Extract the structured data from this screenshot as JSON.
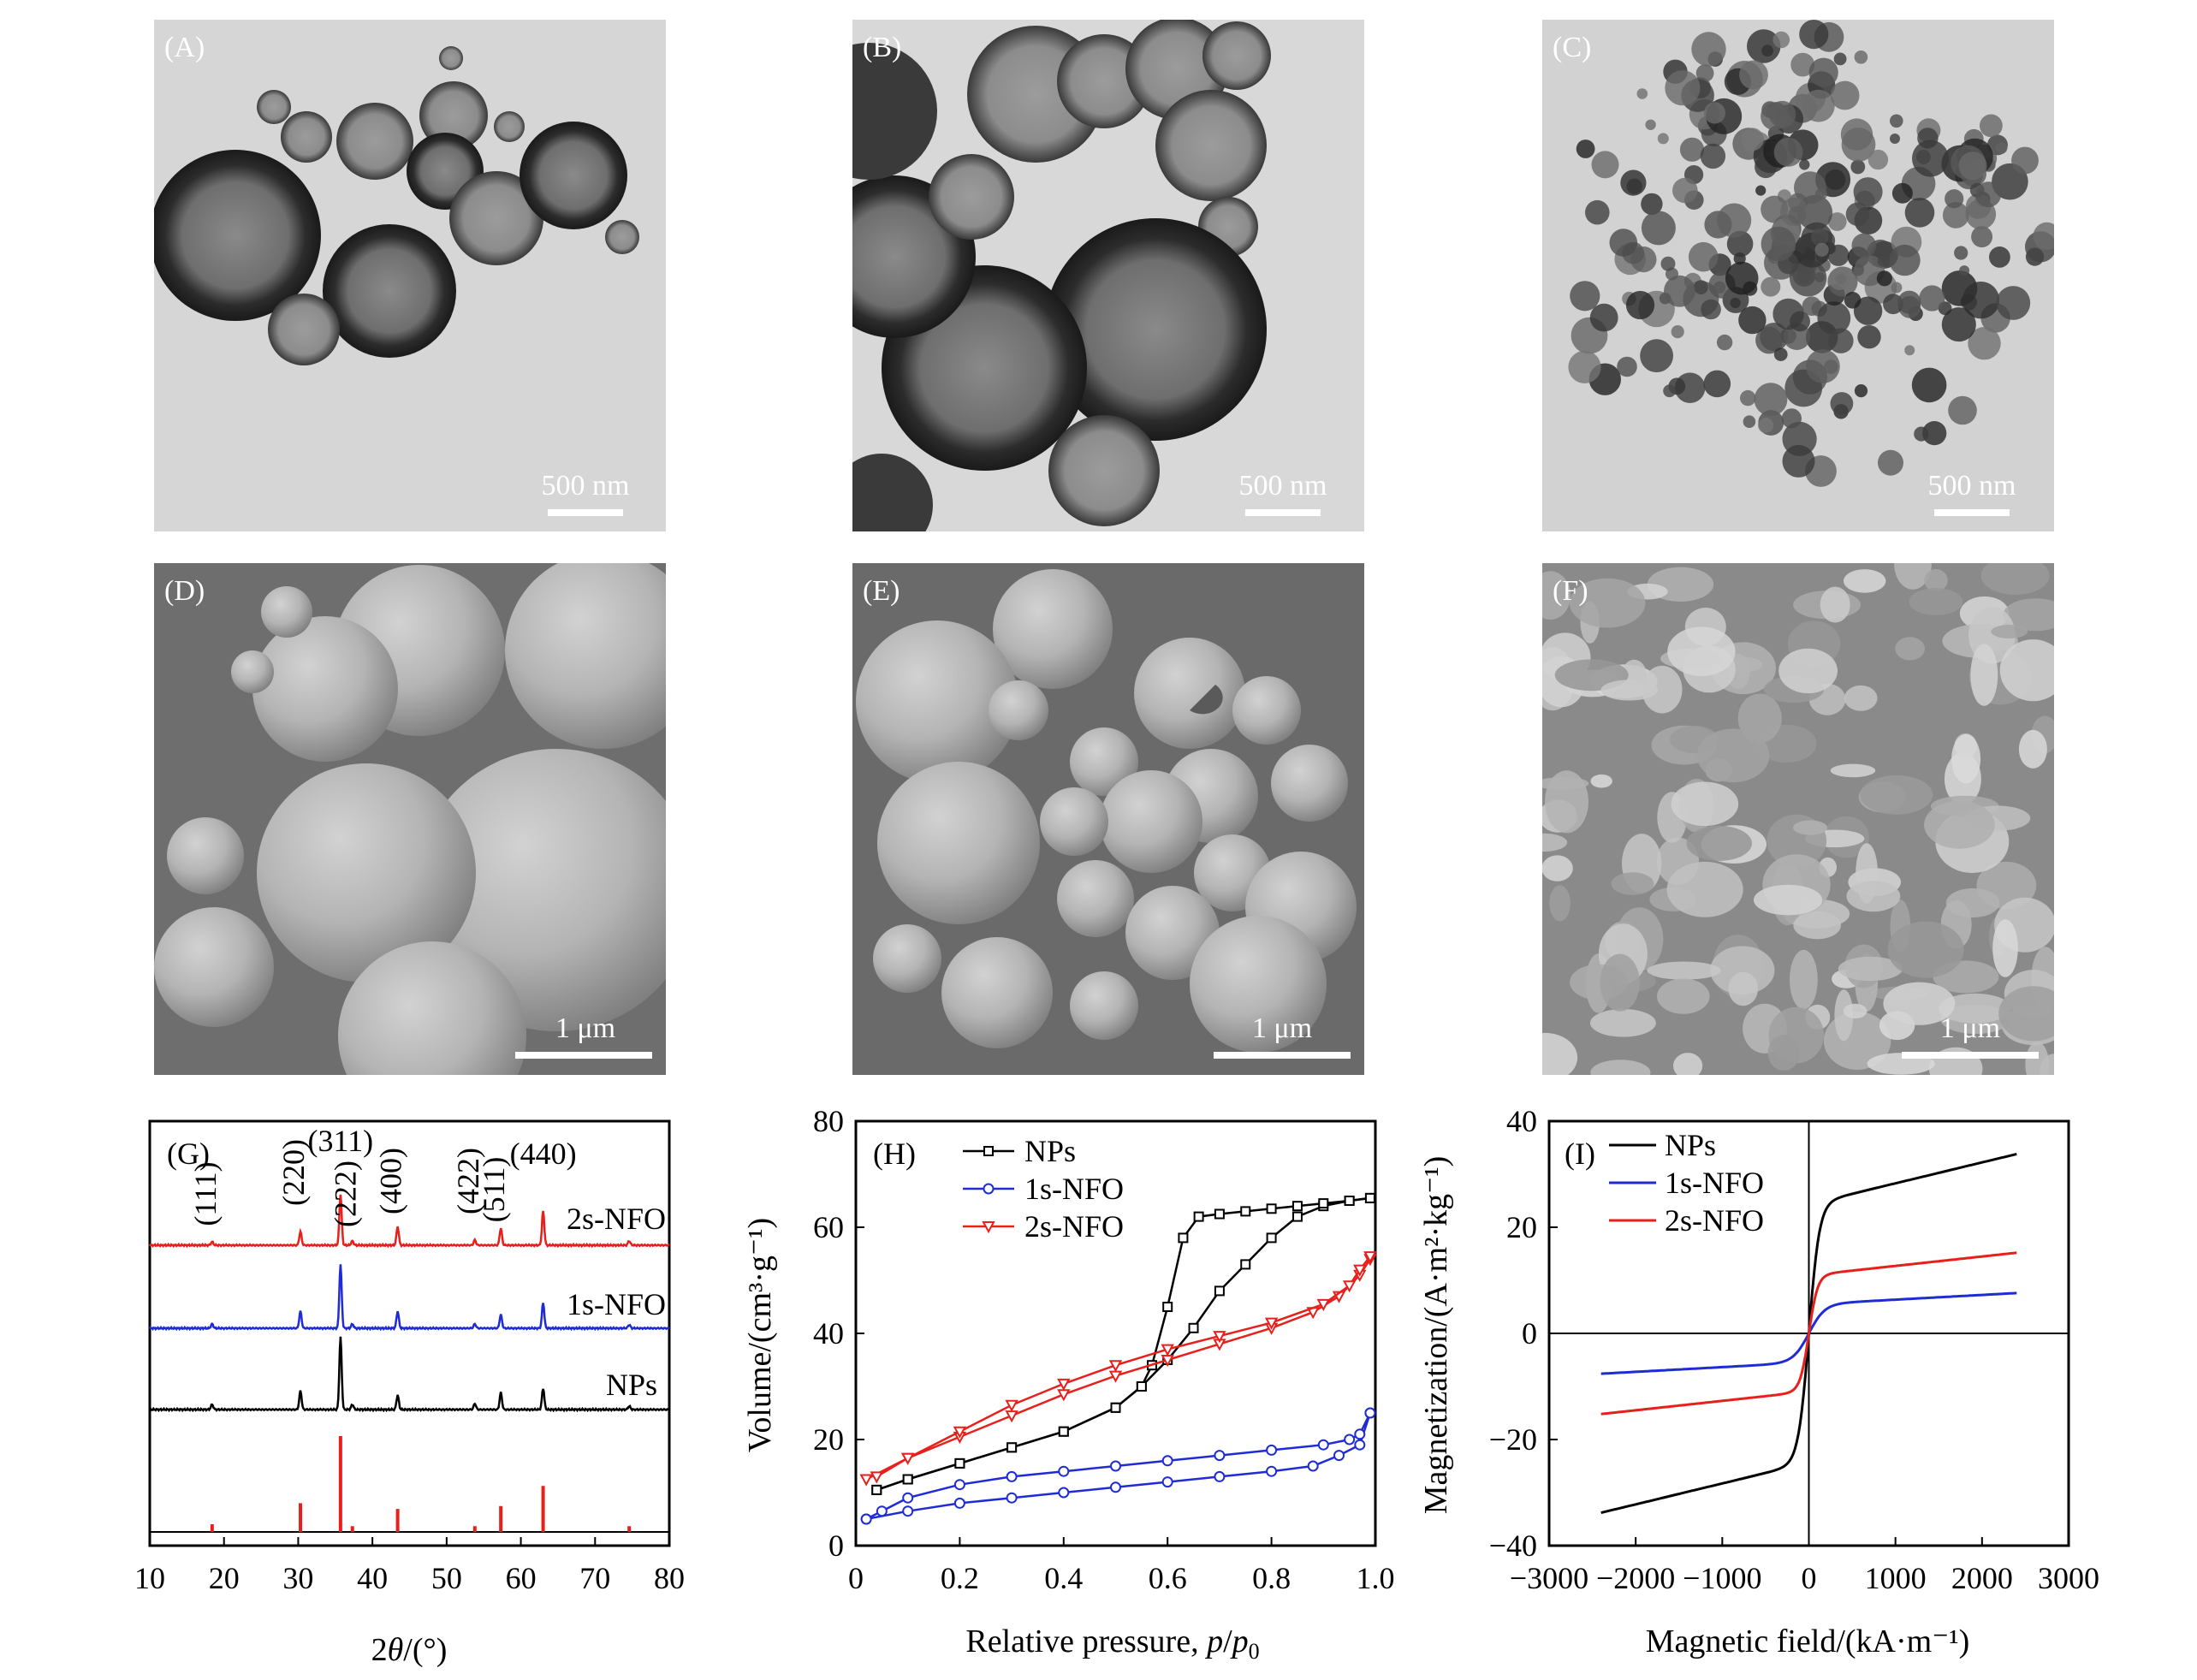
{
  "panels": {
    "A": {
      "label": "(A)",
      "scale": "500 nm"
    },
    "B": {
      "label": "(B)",
      "scale": "500 nm"
    },
    "C": {
      "label": "(C)",
      "scale": "500 nm"
    },
    "D": {
      "label": "(D)",
      "scale": "1 μm"
    },
    "E": {
      "label": "(E)",
      "scale": "1 μm"
    },
    "F": {
      "label": "(F)",
      "scale": "1 μm"
    }
  },
  "chart_data": [
    {
      "panel": "(G)",
      "type": "line",
      "xlabel_pre": "2",
      "xlabel_theta": "θ",
      "xlabel_post": "/(°)",
      "xlim": [
        10,
        80
      ],
      "xticks": [
        10,
        20,
        30,
        40,
        50,
        60,
        70,
        80
      ],
      "peak_labels": [
        "(111)",
        "(220)",
        "(311)",
        "(222)",
        "(400)",
        "(422)",
        "(511)",
        "(440)"
      ],
      "peak_positions": [
        18.4,
        30.3,
        35.7,
        37.3,
        43.4,
        53.8,
        57.3,
        63.0
      ],
      "series": [
        {
          "name": "2s-NFO",
          "color": "#e8201c",
          "peaks": [
            [
              18.4,
              4
            ],
            [
              30.3,
              16
            ],
            [
              35.7,
              60
            ],
            [
              37.3,
              5
            ],
            [
              43.4,
              22
            ],
            [
              53.8,
              6
            ],
            [
              57.3,
              20
            ],
            [
              63.0,
              40
            ],
            [
              74.6,
              5
            ]
          ]
        },
        {
          "name": "1s-NFO",
          "color": "#1f2cd6",
          "peaks": [
            [
              18.4,
              5
            ],
            [
              30.3,
              20
            ],
            [
              35.7,
              75
            ],
            [
              37.3,
              5
            ],
            [
              43.4,
              20
            ],
            [
              53.8,
              5
            ],
            [
              57.3,
              16
            ],
            [
              63.0,
              30
            ],
            [
              74.6,
              4
            ]
          ]
        },
        {
          "name": "NPs",
          "color": "#000000",
          "peaks": [
            [
              18.4,
              6
            ],
            [
              30.3,
              22
            ],
            [
              35.7,
              85
            ],
            [
              37.3,
              6
            ],
            [
              43.4,
              17
            ],
            [
              53.8,
              7
            ],
            [
              57.3,
              20
            ],
            [
              63.0,
              25
            ],
            [
              74.6,
              4
            ]
          ]
        }
      ],
      "reference_color": "#e8201c",
      "reference_lines": [
        [
          18.4,
          8
        ],
        [
          30.3,
          30
        ],
        [
          35.7,
          100
        ],
        [
          37.3,
          6
        ],
        [
          43.4,
          24
        ],
        [
          53.8,
          6
        ],
        [
          57.3,
          27
        ],
        [
          63.0,
          48
        ],
        [
          74.6,
          6
        ]
      ]
    },
    {
      "panel": "(H)",
      "type": "line",
      "xlabel_pre": "Relative pressure, ",
      "xlabel_p": "p",
      "xlabel_slash": "/",
      "xlabel_p0": "p",
      "xlabel_sub": "0",
      "ylabel": "Volume/(cm³·g⁻¹)",
      "xlim": [
        0,
        1.0
      ],
      "ylim": [
        0,
        80
      ],
      "xticks": [
        0,
        0.2,
        0.4,
        0.6,
        0.8,
        1.0
      ],
      "yticks": [
        0,
        20,
        40,
        60,
        80
      ],
      "series": [
        {
          "name": "NPs",
          "color": "#000000",
          "marker": "square",
          "adsorption": [
            [
              0.04,
              10.5
            ],
            [
              0.1,
              12.5
            ],
            [
              0.2,
              15.5
            ],
            [
              0.3,
              18.5
            ],
            [
              0.4,
              21.5
            ],
            [
              0.5,
              26
            ],
            [
              0.55,
              30
            ],
            [
              0.6,
              35
            ],
            [
              0.65,
              41
            ],
            [
              0.7,
              48
            ],
            [
              0.75,
              53
            ],
            [
              0.8,
              58
            ],
            [
              0.85,
              62
            ],
            [
              0.9,
              64
            ],
            [
              0.95,
              65
            ],
            [
              0.99,
              65.5
            ]
          ],
          "desorption": [
            [
              0.99,
              65.5
            ],
            [
              0.95,
              65
            ],
            [
              0.9,
              64.5
            ],
            [
              0.85,
              64
            ],
            [
              0.8,
              63.5
            ],
            [
              0.75,
              63
            ],
            [
              0.7,
              62.5
            ],
            [
              0.66,
              62
            ],
            [
              0.63,
              58
            ],
            [
              0.6,
              45
            ],
            [
              0.57,
              34
            ],
            [
              0.55,
              30
            ],
            [
              0.5,
              26
            ],
            [
              0.4,
              21.5
            ],
            [
              0.3,
              18.5
            ],
            [
              0.2,
              15.5
            ],
            [
              0.1,
              12.5
            ],
            [
              0.04,
              10.5
            ]
          ]
        },
        {
          "name": "1s-NFO",
          "color": "#1f2cd6",
          "marker": "circle",
          "adsorption": [
            [
              0.02,
              5
            ],
            [
              0.1,
              6.5
            ],
            [
              0.2,
              8
            ],
            [
              0.3,
              9
            ],
            [
              0.4,
              10
            ],
            [
              0.5,
              11
            ],
            [
              0.6,
              12
            ],
            [
              0.7,
              13
            ],
            [
              0.8,
              14
            ],
            [
              0.88,
              15
            ],
            [
              0.93,
              17
            ],
            [
              0.97,
              19
            ],
            [
              0.99,
              25
            ]
          ],
          "desorption": [
            [
              0.99,
              25
            ],
            [
              0.97,
              21
            ],
            [
              0.95,
              20
            ],
            [
              0.9,
              19
            ],
            [
              0.8,
              18
            ],
            [
              0.7,
              17
            ],
            [
              0.6,
              16
            ],
            [
              0.5,
              15
            ],
            [
              0.4,
              14
            ],
            [
              0.3,
              13
            ],
            [
              0.2,
              11.5
            ],
            [
              0.1,
              9
            ],
            [
              0.05,
              6.5
            ],
            [
              0.02,
              5
            ]
          ]
        },
        {
          "name": "2s-NFO",
          "color": "#e8201c",
          "marker": "triangle-down",
          "adsorption": [
            [
              0.02,
              12.5
            ],
            [
              0.1,
              16.5
            ],
            [
              0.2,
              20.5
            ],
            [
              0.3,
              24.5
            ],
            [
              0.4,
              28.5
            ],
            [
              0.5,
              32
            ],
            [
              0.6,
              35
            ],
            [
              0.7,
              38
            ],
            [
              0.8,
              41
            ],
            [
              0.88,
              44
            ],
            [
              0.93,
              47
            ],
            [
              0.97,
              51
            ],
            [
              0.99,
              54
            ]
          ],
          "desorption": [
            [
              0.99,
              54.5
            ],
            [
              0.97,
              52
            ],
            [
              0.95,
              49
            ],
            [
              0.9,
              45.5
            ],
            [
              0.8,
              42
            ],
            [
              0.7,
              39.5
            ],
            [
              0.6,
              37
            ],
            [
              0.5,
              34
            ],
            [
              0.4,
              30.5
            ],
            [
              0.3,
              26.5
            ],
            [
              0.2,
              21.5
            ],
            [
              0.1,
              16.5
            ],
            [
              0.04,
              13
            ]
          ]
        }
      ]
    },
    {
      "panel": "(I)",
      "type": "line",
      "xlabel": "Magnetic field/(kA·m⁻¹)",
      "ylabel": "Magnetization/(A·m²·kg⁻¹)",
      "xlim": [
        -3000,
        3000
      ],
      "ylim": [
        -40,
        40
      ],
      "xticks": [
        -3000,
        -2000,
        -1000,
        0,
        1000,
        2000,
        3000
      ],
      "xtick_labels": [
        "−3000",
        "−2000",
        "−1000",
        "0",
        "1000",
        "2000",
        "3000"
      ],
      "yticks": [
        -40,
        -20,
        0,
        20,
        40
      ],
      "ytick_labels": [
        "−40",
        "−20",
        "0",
        "20",
        "40"
      ],
      "series": [
        {
          "name": "NPs",
          "color": "#000000",
          "ms": 33.8,
          "hk": 120
        },
        {
          "name": "1s-NFO",
          "color": "#1f2cd6",
          "ms": 7.6,
          "hk": 180
        },
        {
          "name": "2s-NFO",
          "color": "#e8201c",
          "ms": 15.2,
          "hk": 100
        }
      ]
    }
  ]
}
